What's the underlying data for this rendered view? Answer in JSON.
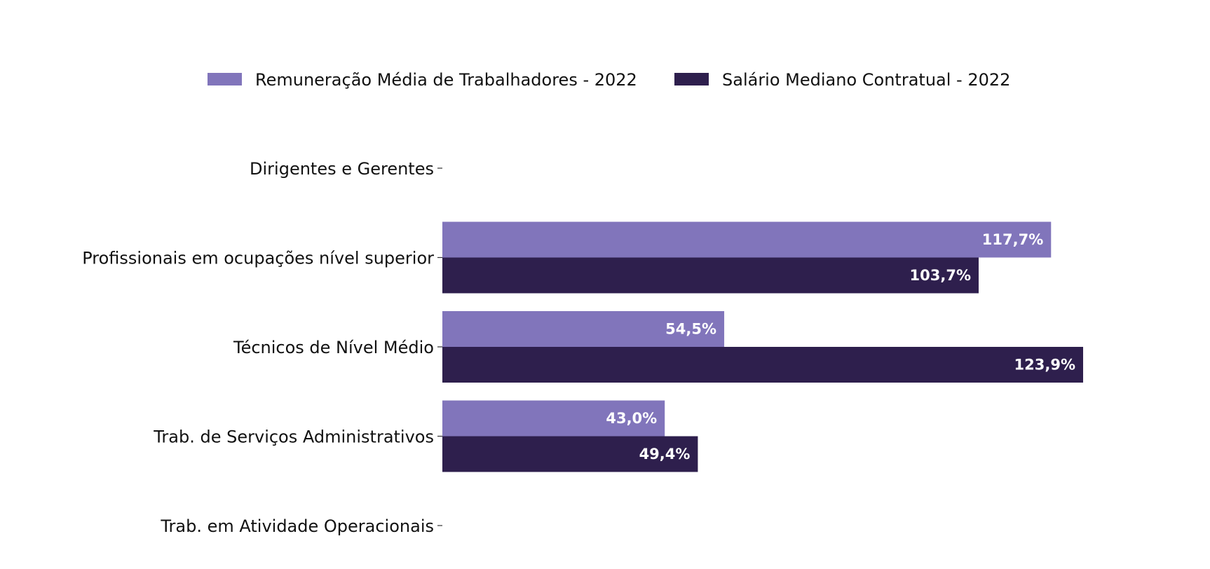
{
  "chart_data": {
    "type": "bar",
    "orientation": "horizontal",
    "categories": [
      "Dirigentes e Gerentes",
      "Profissionais em ocupações nível superior",
      "Técnicos de Nível Médio",
      "Trab. de Serviços Administrativos",
      "Trab. em Atividade Operacionais"
    ],
    "series": [
      {
        "name": "Remuneração Média de Trabalhadores - 2022",
        "color": "#8175bb",
        "values": [
          null,
          117.7,
          54.5,
          43.0,
          null
        ],
        "labels": [
          "",
          "117,7%",
          "54,5%",
          "43,0%",
          ""
        ]
      },
      {
        "name": "Salário Mediano Contratual - 2022",
        "color": "#2e1f4d",
        "values": [
          null,
          103.7,
          123.9,
          49.4,
          null
        ],
        "labels": [
          "",
          "103,7%",
          "123,9%",
          "49,4%",
          ""
        ]
      }
    ],
    "title": "",
    "xlabel": "",
    "ylabel": "",
    "xlim": [
      0,
      130
    ],
    "grid": false,
    "legend_position": "top-center",
    "x_axis_visible": false
  }
}
